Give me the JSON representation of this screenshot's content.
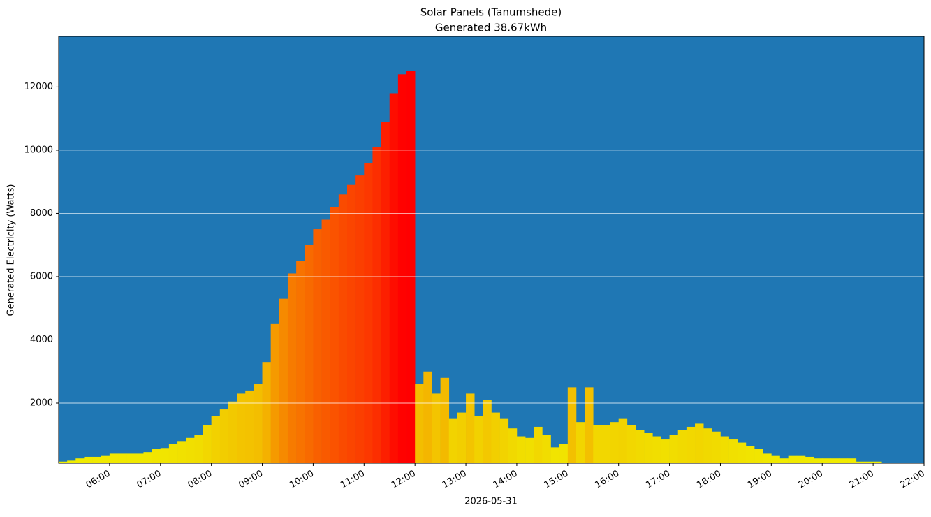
{
  "chart_data": {
    "type": "bar",
    "title": "Solar Panels (Tanumshede)",
    "subtitle": "Generated 38.67kWh",
    "x_label": "2026-05-31",
    "y_label": "Generated Electricity (Watts)",
    "x": [
      "05:00",
      "05:10",
      "05:20",
      "05:30",
      "05:40",
      "05:50",
      "06:00",
      "06:10",
      "06:20",
      "06:30",
      "06:40",
      "06:50",
      "07:00",
      "07:10",
      "07:20",
      "07:30",
      "07:40",
      "07:50",
      "08:00",
      "08:10",
      "08:20",
      "08:30",
      "08:40",
      "08:50",
      "09:00",
      "09:10",
      "09:20",
      "09:30",
      "09:40",
      "09:50",
      "10:00",
      "10:10",
      "10:20",
      "10:30",
      "10:40",
      "10:50",
      "11:00",
      "11:10",
      "11:20",
      "11:30",
      "11:40",
      "11:50",
      "12:00",
      "12:10",
      "12:20",
      "12:30",
      "12:40",
      "12:50",
      "13:00",
      "13:10",
      "13:20",
      "13:30",
      "13:40",
      "13:50",
      "14:00",
      "14:10",
      "14:20",
      "14:30",
      "14:40",
      "14:50",
      "15:00",
      "15:10",
      "15:20",
      "15:30",
      "15:40",
      "15:50",
      "16:00",
      "16:10",
      "16:20",
      "16:30",
      "16:40",
      "16:50",
      "17:00",
      "17:10",
      "17:20",
      "17:30",
      "17:40",
      "17:50",
      "18:00",
      "18:10",
      "18:20",
      "18:30",
      "18:40",
      "18:50",
      "19:00",
      "19:10",
      "19:20",
      "19:30",
      "19:40",
      "19:50",
      "20:00",
      "20:10",
      "20:20",
      "20:30",
      "20:40",
      "20:50",
      "21:00"
    ],
    "values": [
      150,
      180,
      250,
      300,
      300,
      350,
      400,
      400,
      400,
      400,
      450,
      550,
      580,
      700,
      800,
      900,
      1000,
      1300,
      1600,
      1800,
      2050,
      2300,
      2400,
      2600,
      3300,
      4500,
      5300,
      6100,
      6500,
      7000,
      7500,
      7800,
      8200,
      8600,
      8900,
      9200,
      9600,
      10100,
      10900,
      11800,
      12400,
      12500,
      2600,
      3000,
      2300,
      2800,
      1500,
      1700,
      2300,
      1600,
      2100,
      1700,
      1500,
      1200,
      950,
      900,
      1250,
      1000,
      600,
      700,
      2500,
      1400,
      2500,
      1300,
      1300,
      1400,
      1500,
      1300,
      1150,
      1050,
      950,
      850,
      1000,
      1150,
      1250,
      1350,
      1200,
      1100,
      950,
      850,
      750,
      650,
      550,
      400,
      350,
      250,
      350,
      350,
      300,
      250,
      250,
      250,
      250,
      250,
      150,
      150,
      150
    ],
    "bar_width_minutes": 10,
    "color_scale": [
      "#f0f000",
      "#ff0000"
    ],
    "background": "#1f77b4",
    "xlim": [
      "05:00",
      "22:00"
    ],
    "xticks": [
      "06:00",
      "07:00",
      "08:00",
      "09:00",
      "10:00",
      "11:00",
      "12:00",
      "13:00",
      "14:00",
      "15:00",
      "16:00",
      "17:00",
      "18:00",
      "19:00",
      "20:00",
      "21:00",
      "22:00"
    ],
    "ylim": [
      100,
      13600
    ],
    "yticks": [
      2000,
      4000,
      6000,
      8000,
      10000,
      12000
    ],
    "grid": true
  }
}
